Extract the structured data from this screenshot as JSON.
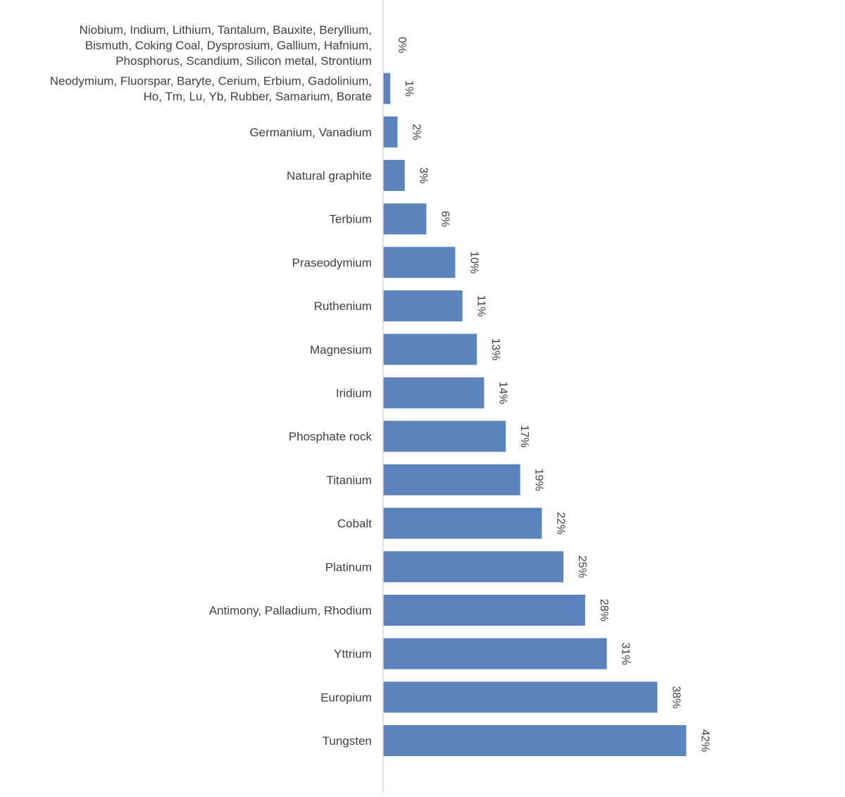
{
  "chart_data": {
    "type": "bar",
    "orientation": "horizontal",
    "title": "",
    "xlabel": "",
    "ylabel": "",
    "categories": [
      [
        "Niobium, Indium, Lithium, Tantalum, Bauxite, Beryllium,",
        "Bismuth, Coking Coal, Dysprosium, Gallium, Hafnium,",
        "Phosphorus, Scandium, Silicon metal, Strontium"
      ],
      [
        "Neodymium, Fluorspar, Baryte, Cerium, Erbium, Gadolinium,",
        "Ho, Tm, Lu, Yb, Rubber, Samarium, Borate"
      ],
      [
        "Germanium, Vanadium"
      ],
      [
        "Natural graphite"
      ],
      [
        "Terbium"
      ],
      [
        "Praseodymium"
      ],
      [
        "Ruthenium"
      ],
      [
        "Magnesium"
      ],
      [
        "Iridium"
      ],
      [
        "Phosphate rock"
      ],
      [
        "Titanium"
      ],
      [
        "Cobalt"
      ],
      [
        "Platinum"
      ],
      [
        "Antimony, Palladium, Rhodium"
      ],
      [
        "Yttrium"
      ],
      [
        "Europium"
      ],
      [
        "Tungsten"
      ]
    ],
    "values": [
      0,
      1,
      2,
      3,
      6,
      10,
      11,
      13,
      14,
      17,
      19,
      22,
      25,
      28,
      31,
      38,
      42
    ],
    "value_labels": [
      "0%",
      "1%",
      "2%",
      "3%",
      "6%",
      "10%",
      "11%",
      "13%",
      "14%",
      "17%",
      "19%",
      "22%",
      "25%",
      "28%",
      "31%",
      "38%",
      "42%"
    ],
    "xlim": [
      0,
      42
    ],
    "grid": false,
    "legend": "none",
    "bar_color": "#5b84bd",
    "axis_color": "#d9d9d9",
    "label_color": "#404040"
  }
}
